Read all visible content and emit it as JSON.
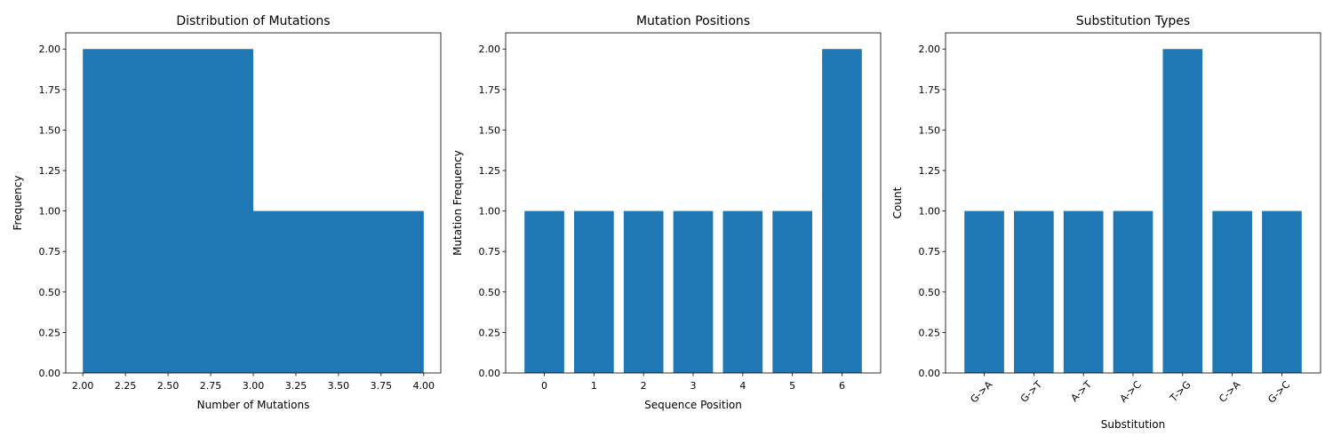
{
  "chart_data": [
    {
      "type": "bar",
      "title": "Distribution of Mutations",
      "xlabel": "Number of Mutations",
      "ylabel": "Frequency",
      "bins": [
        {
          "start": 2.0,
          "end": 3.0,
          "value": 2
        },
        {
          "start": 3.0,
          "end": 4.0,
          "value": 1
        }
      ],
      "xlim": [
        1.9,
        4.1
      ],
      "ylim": [
        0,
        2.1
      ],
      "xticks": [
        "2.00",
        "2.25",
        "2.50",
        "2.75",
        "3.00",
        "3.25",
        "3.50",
        "3.75",
        "4.00"
      ],
      "yticks": [
        "0.00",
        "0.25",
        "0.50",
        "0.75",
        "1.00",
        "1.25",
        "1.50",
        "1.75",
        "2.00"
      ],
      "color": "#1f77b4",
      "grid": false
    },
    {
      "type": "bar",
      "title": "Mutation Positions",
      "xlabel": "Sequence Position",
      "ylabel": "Mutation Frequency",
      "categories": [
        "0",
        "1",
        "2",
        "3",
        "4",
        "5",
        "6"
      ],
      "values": [
        1,
        1,
        1,
        1,
        1,
        1,
        2
      ],
      "ylim": [
        0,
        2.1
      ],
      "yticks": [
        "0.00",
        "0.25",
        "0.50",
        "0.75",
        "1.00",
        "1.25",
        "1.50",
        "1.75",
        "2.00"
      ],
      "color": "#1f77b4",
      "grid": false
    },
    {
      "type": "bar",
      "title": "Substitution Types",
      "xlabel": "Substitution",
      "ylabel": "Count",
      "categories": [
        "G->A",
        "G->T",
        "A->T",
        "A->C",
        "T->G",
        "C->A",
        "G->C"
      ],
      "values": [
        1,
        1,
        1,
        1,
        2,
        1,
        1
      ],
      "ylim": [
        0,
        2.1
      ],
      "yticks": [
        "0.00",
        "0.25",
        "0.50",
        "0.75",
        "1.00",
        "1.25",
        "1.50",
        "1.75",
        "2.00"
      ],
      "xtick_rotation": 45,
      "color": "#1f77b4",
      "grid": false
    }
  ]
}
